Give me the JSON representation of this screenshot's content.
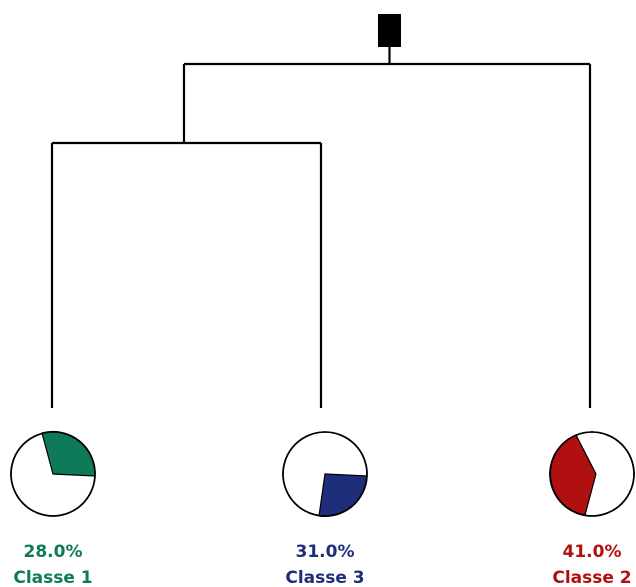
{
  "diagram": {
    "type": "dendrogram",
    "leaves": [
      {
        "id": "classe-1",
        "label": "Classe 1",
        "percent_label": "28.0%",
        "percent": 28.0,
        "color": "#0e7a5a"
      },
      {
        "id": "classe-3",
        "label": "Classe 3",
        "percent_label": "31.0%",
        "percent": 31.0,
        "color": "#1f2e7a"
      },
      {
        "id": "classe-2",
        "label": "Classe 2",
        "percent_label": "41.0%",
        "percent": 41.0,
        "color": "#b01010"
      }
    ]
  }
}
